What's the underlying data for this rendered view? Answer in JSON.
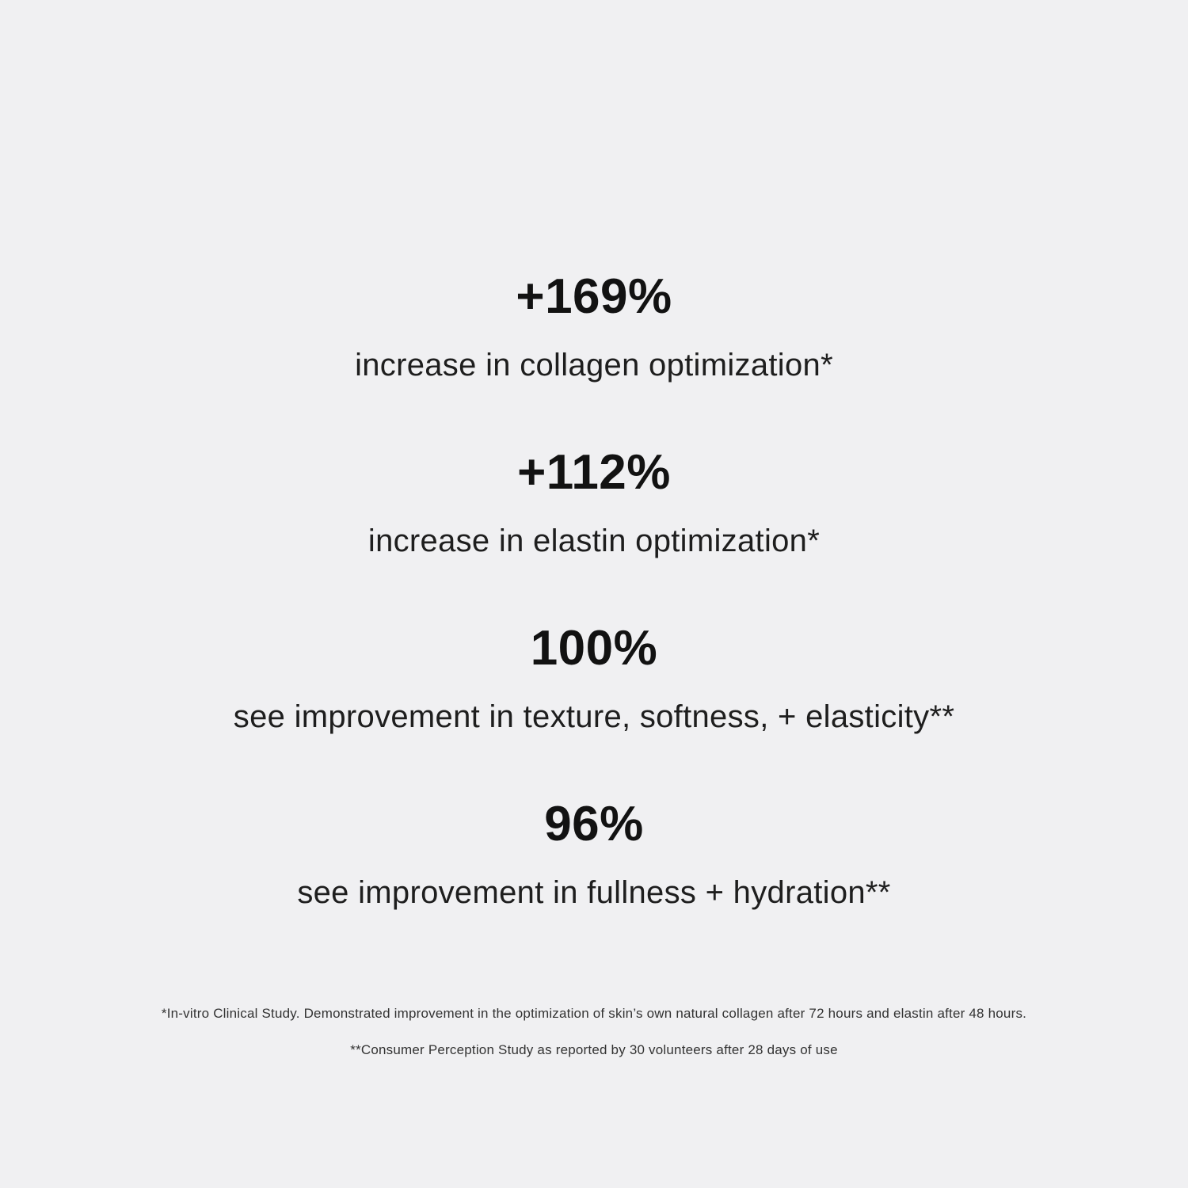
{
  "colors": {
    "background": "#f0f0f2",
    "stat_text": "#121212",
    "footnote_text": "#333333"
  },
  "stats": [
    {
      "value": "+169%",
      "label": "increase in collagen optimization*"
    },
    {
      "value": "+112%",
      "label": "increase in elastin optimization*"
    },
    {
      "value": "100%",
      "label": "see improvement in texture, softness, + elasticity**"
    },
    {
      "value": "96%",
      "label": "see improvement in fullness + hydration**"
    }
  ],
  "footnotes": [
    "*In-vitro Clinical Study. Demonstrated improvement in the optimization of skin’s own natural collagen after 72 hours and elastin after 48 hours.",
    "**Consumer Perception Study as reported by 30 volunteers after 28 days of use"
  ]
}
